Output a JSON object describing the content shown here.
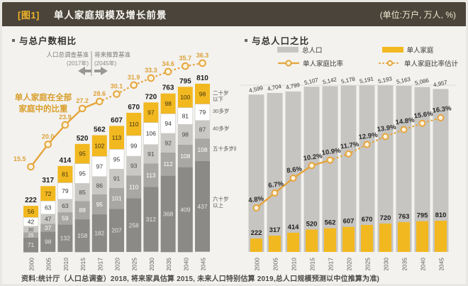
{
  "header": {
    "tag": "[图1]",
    "title": "单人家庭规模及增长前景",
    "units": "(单位:万户, 万人, %)"
  },
  "footer": {
    "source": "资料:统计厅（人口总调查）2018, 将来家具估算 2015, 未来人口特别估算 2019,总人口规模预测以中位推算为准)"
  },
  "colors": {
    "header_bg": "#4a443a",
    "accent_yellow": "#f2b81f",
    "line_gold": "#e5a53c",
    "white_seg": "#ffffff",
    "gray_light": "#c9c8c5",
    "gray_medium": "#a8a7a4",
    "gray_dark": "#8b8a87",
    "pop_gray": "#c6c5c2",
    "gold_text": "#d99e2c"
  },
  "chart_data": [
    {
      "type": "bar",
      "subtype": "stacked-bars-with-ratio-line",
      "title": "与总户数相比",
      "annotation": {
        "left_label": "人口总调查基准",
        "left_year": "(2017年)",
        "right_label": "将来推算基准",
        "right_year": "(2045年)"
      },
      "side_label_line1": "单人家庭在全部",
      "side_label_line2": "家庭中的比重",
      "categories": [
        "2000",
        "2005",
        "2010",
        "2015",
        "2017",
        "2020",
        "2025",
        "2030",
        "2035",
        "2040",
        "2045"
      ],
      "totals": [
        222,
        317,
        414,
        520,
        562,
        607,
        670,
        720,
        763,
        795,
        810
      ],
      "age_groups": [
        "二十岁\n以下",
        "30多岁",
        "40多岁",
        "五十多岁的人",
        "六十岁\n以上"
      ],
      "series": [
        {
          "name": "二十岁以下",
          "values": [
            56,
            72,
            81,
            95,
            102,
            113,
            110,
            97,
            98,
            100,
            98
          ]
        },
        {
          "name": "30多岁",
          "values": [
            42,
            63,
            79,
            95,
            97,
            95,
            99,
            106,
            94,
            81,
            79
          ]
        },
        {
          "name": "40多岁",
          "values": [
            30,
            47,
            63,
            85,
            86,
            91,
            93,
            91,
            92,
            98,
            87
          ]
        },
        {
          "name": "五十多岁的人",
          "values": [
            25,
            37,
            59,
            88,
            95,
            101,
            110,
            113,
            112,
            108,
            108
          ]
        },
        {
          "name": "六十岁以上",
          "values": [
            71,
            98,
            132,
            158,
            182,
            207,
            258,
            312,
            368,
            409,
            437
          ]
        }
      ],
      "line": {
        "name": "单人家庭在全部家庭中的比重",
        "values": [
          15.5,
          20.0,
          23.9,
          27.2,
          28.6,
          30.1,
          31.9,
          33.3,
          34.6,
          35.7,
          36.3
        ],
        "solid_until_index": 4
      },
      "ylabel": "万户",
      "grid": false
    },
    {
      "type": "bar",
      "subtype": "grouped-bars-with-ratio-line",
      "title": "与总人口之比",
      "legend": [
        "总人口",
        "单人家庭",
        "单人家庭比率",
        "单人家庭比率估计"
      ],
      "categories": [
        "2000",
        "2005",
        "2010",
        "2015",
        "2017",
        "2020",
        "2025",
        "2030",
        "2035",
        "2040",
        "2045"
      ],
      "series": [
        {
          "name": "总人口",
          "values": [
            4599,
            4704,
            4799,
            5107,
            5142,
            5178,
            5191,
            5193,
            5163,
            5086,
            4957
          ],
          "labels": [
            "4,599",
            "4,704",
            "4,799",
            "5,107",
            "5,142",
            "5,178",
            "5,191",
            "5,193",
            "5,163",
            "5,086",
            "4,957"
          ]
        },
        {
          "name": "单人家庭",
          "values": [
            222,
            317,
            414,
            520,
            562,
            607,
            670,
            720,
            763,
            795,
            810
          ]
        }
      ],
      "line": {
        "name": "单人家庭比率",
        "values": [
          4.8,
          6.7,
          8.6,
          10.2,
          10.9,
          11.7,
          12.9,
          13.9,
          14.8,
          15.6,
          16.3
        ],
        "solid_until_index": 4,
        "label_suffix": "%"
      },
      "ylabel": "万人 / %",
      "grid": true
    }
  ]
}
